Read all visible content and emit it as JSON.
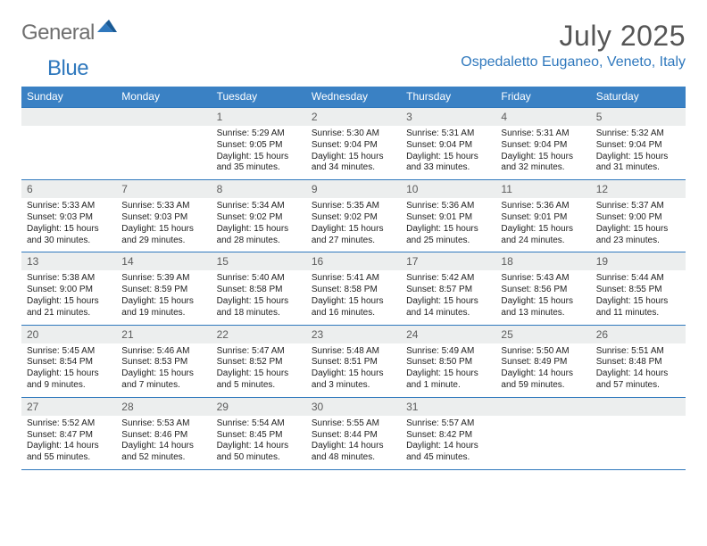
{
  "brand": {
    "part1": "General",
    "part2": "Blue"
  },
  "title": "July 2025",
  "location": "Ospedaletto Euganeo, Veneto, Italy",
  "colors": {
    "header_bg": "#3a81c4",
    "accent": "#2f78bd",
    "daynum_bg": "#eceeee",
    "text": "#222222",
    "title_text": "#555555",
    "logo_grey": "#6f6f6f"
  },
  "dayNames": [
    "Sunday",
    "Monday",
    "Tuesday",
    "Wednesday",
    "Thursday",
    "Friday",
    "Saturday"
  ],
  "weeks": [
    {
      "nums": [
        "",
        "",
        "1",
        "2",
        "3",
        "4",
        "5"
      ],
      "cells": [
        null,
        null,
        {
          "sunrise": "Sunrise: 5:29 AM",
          "sunset": "Sunset: 9:05 PM",
          "day": "Daylight: 15 hours and 35 minutes."
        },
        {
          "sunrise": "Sunrise: 5:30 AM",
          "sunset": "Sunset: 9:04 PM",
          "day": "Daylight: 15 hours and 34 minutes."
        },
        {
          "sunrise": "Sunrise: 5:31 AM",
          "sunset": "Sunset: 9:04 PM",
          "day": "Daylight: 15 hours and 33 minutes."
        },
        {
          "sunrise": "Sunrise: 5:31 AM",
          "sunset": "Sunset: 9:04 PM",
          "day": "Daylight: 15 hours and 32 minutes."
        },
        {
          "sunrise": "Sunrise: 5:32 AM",
          "sunset": "Sunset: 9:04 PM",
          "day": "Daylight: 15 hours and 31 minutes."
        }
      ]
    },
    {
      "nums": [
        "6",
        "7",
        "8",
        "9",
        "10",
        "11",
        "12"
      ],
      "cells": [
        {
          "sunrise": "Sunrise: 5:33 AM",
          "sunset": "Sunset: 9:03 PM",
          "day": "Daylight: 15 hours and 30 minutes."
        },
        {
          "sunrise": "Sunrise: 5:33 AM",
          "sunset": "Sunset: 9:03 PM",
          "day": "Daylight: 15 hours and 29 minutes."
        },
        {
          "sunrise": "Sunrise: 5:34 AM",
          "sunset": "Sunset: 9:02 PM",
          "day": "Daylight: 15 hours and 28 minutes."
        },
        {
          "sunrise": "Sunrise: 5:35 AM",
          "sunset": "Sunset: 9:02 PM",
          "day": "Daylight: 15 hours and 27 minutes."
        },
        {
          "sunrise": "Sunrise: 5:36 AM",
          "sunset": "Sunset: 9:01 PM",
          "day": "Daylight: 15 hours and 25 minutes."
        },
        {
          "sunrise": "Sunrise: 5:36 AM",
          "sunset": "Sunset: 9:01 PM",
          "day": "Daylight: 15 hours and 24 minutes."
        },
        {
          "sunrise": "Sunrise: 5:37 AM",
          "sunset": "Sunset: 9:00 PM",
          "day": "Daylight: 15 hours and 23 minutes."
        }
      ]
    },
    {
      "nums": [
        "13",
        "14",
        "15",
        "16",
        "17",
        "18",
        "19"
      ],
      "cells": [
        {
          "sunrise": "Sunrise: 5:38 AM",
          "sunset": "Sunset: 9:00 PM",
          "day": "Daylight: 15 hours and 21 minutes."
        },
        {
          "sunrise": "Sunrise: 5:39 AM",
          "sunset": "Sunset: 8:59 PM",
          "day": "Daylight: 15 hours and 19 minutes."
        },
        {
          "sunrise": "Sunrise: 5:40 AM",
          "sunset": "Sunset: 8:58 PM",
          "day": "Daylight: 15 hours and 18 minutes."
        },
        {
          "sunrise": "Sunrise: 5:41 AM",
          "sunset": "Sunset: 8:58 PM",
          "day": "Daylight: 15 hours and 16 minutes."
        },
        {
          "sunrise": "Sunrise: 5:42 AM",
          "sunset": "Sunset: 8:57 PM",
          "day": "Daylight: 15 hours and 14 minutes."
        },
        {
          "sunrise": "Sunrise: 5:43 AM",
          "sunset": "Sunset: 8:56 PM",
          "day": "Daylight: 15 hours and 13 minutes."
        },
        {
          "sunrise": "Sunrise: 5:44 AM",
          "sunset": "Sunset: 8:55 PM",
          "day": "Daylight: 15 hours and 11 minutes."
        }
      ]
    },
    {
      "nums": [
        "20",
        "21",
        "22",
        "23",
        "24",
        "25",
        "26"
      ],
      "cells": [
        {
          "sunrise": "Sunrise: 5:45 AM",
          "sunset": "Sunset: 8:54 PM",
          "day": "Daylight: 15 hours and 9 minutes."
        },
        {
          "sunrise": "Sunrise: 5:46 AM",
          "sunset": "Sunset: 8:53 PM",
          "day": "Daylight: 15 hours and 7 minutes."
        },
        {
          "sunrise": "Sunrise: 5:47 AM",
          "sunset": "Sunset: 8:52 PM",
          "day": "Daylight: 15 hours and 5 minutes."
        },
        {
          "sunrise": "Sunrise: 5:48 AM",
          "sunset": "Sunset: 8:51 PM",
          "day": "Daylight: 15 hours and 3 minutes."
        },
        {
          "sunrise": "Sunrise: 5:49 AM",
          "sunset": "Sunset: 8:50 PM",
          "day": "Daylight: 15 hours and 1 minute."
        },
        {
          "sunrise": "Sunrise: 5:50 AM",
          "sunset": "Sunset: 8:49 PM",
          "day": "Daylight: 14 hours and 59 minutes."
        },
        {
          "sunrise": "Sunrise: 5:51 AM",
          "sunset": "Sunset: 8:48 PM",
          "day": "Daylight: 14 hours and 57 minutes."
        }
      ]
    },
    {
      "nums": [
        "27",
        "28",
        "29",
        "30",
        "31",
        "",
        ""
      ],
      "cells": [
        {
          "sunrise": "Sunrise: 5:52 AM",
          "sunset": "Sunset: 8:47 PM",
          "day": "Daylight: 14 hours and 55 minutes."
        },
        {
          "sunrise": "Sunrise: 5:53 AM",
          "sunset": "Sunset: 8:46 PM",
          "day": "Daylight: 14 hours and 52 minutes."
        },
        {
          "sunrise": "Sunrise: 5:54 AM",
          "sunset": "Sunset: 8:45 PM",
          "day": "Daylight: 14 hours and 50 minutes."
        },
        {
          "sunrise": "Sunrise: 5:55 AM",
          "sunset": "Sunset: 8:44 PM",
          "day": "Daylight: 14 hours and 48 minutes."
        },
        {
          "sunrise": "Sunrise: 5:57 AM",
          "sunset": "Sunset: 8:42 PM",
          "day": "Daylight: 14 hours and 45 minutes."
        },
        null,
        null
      ]
    }
  ]
}
